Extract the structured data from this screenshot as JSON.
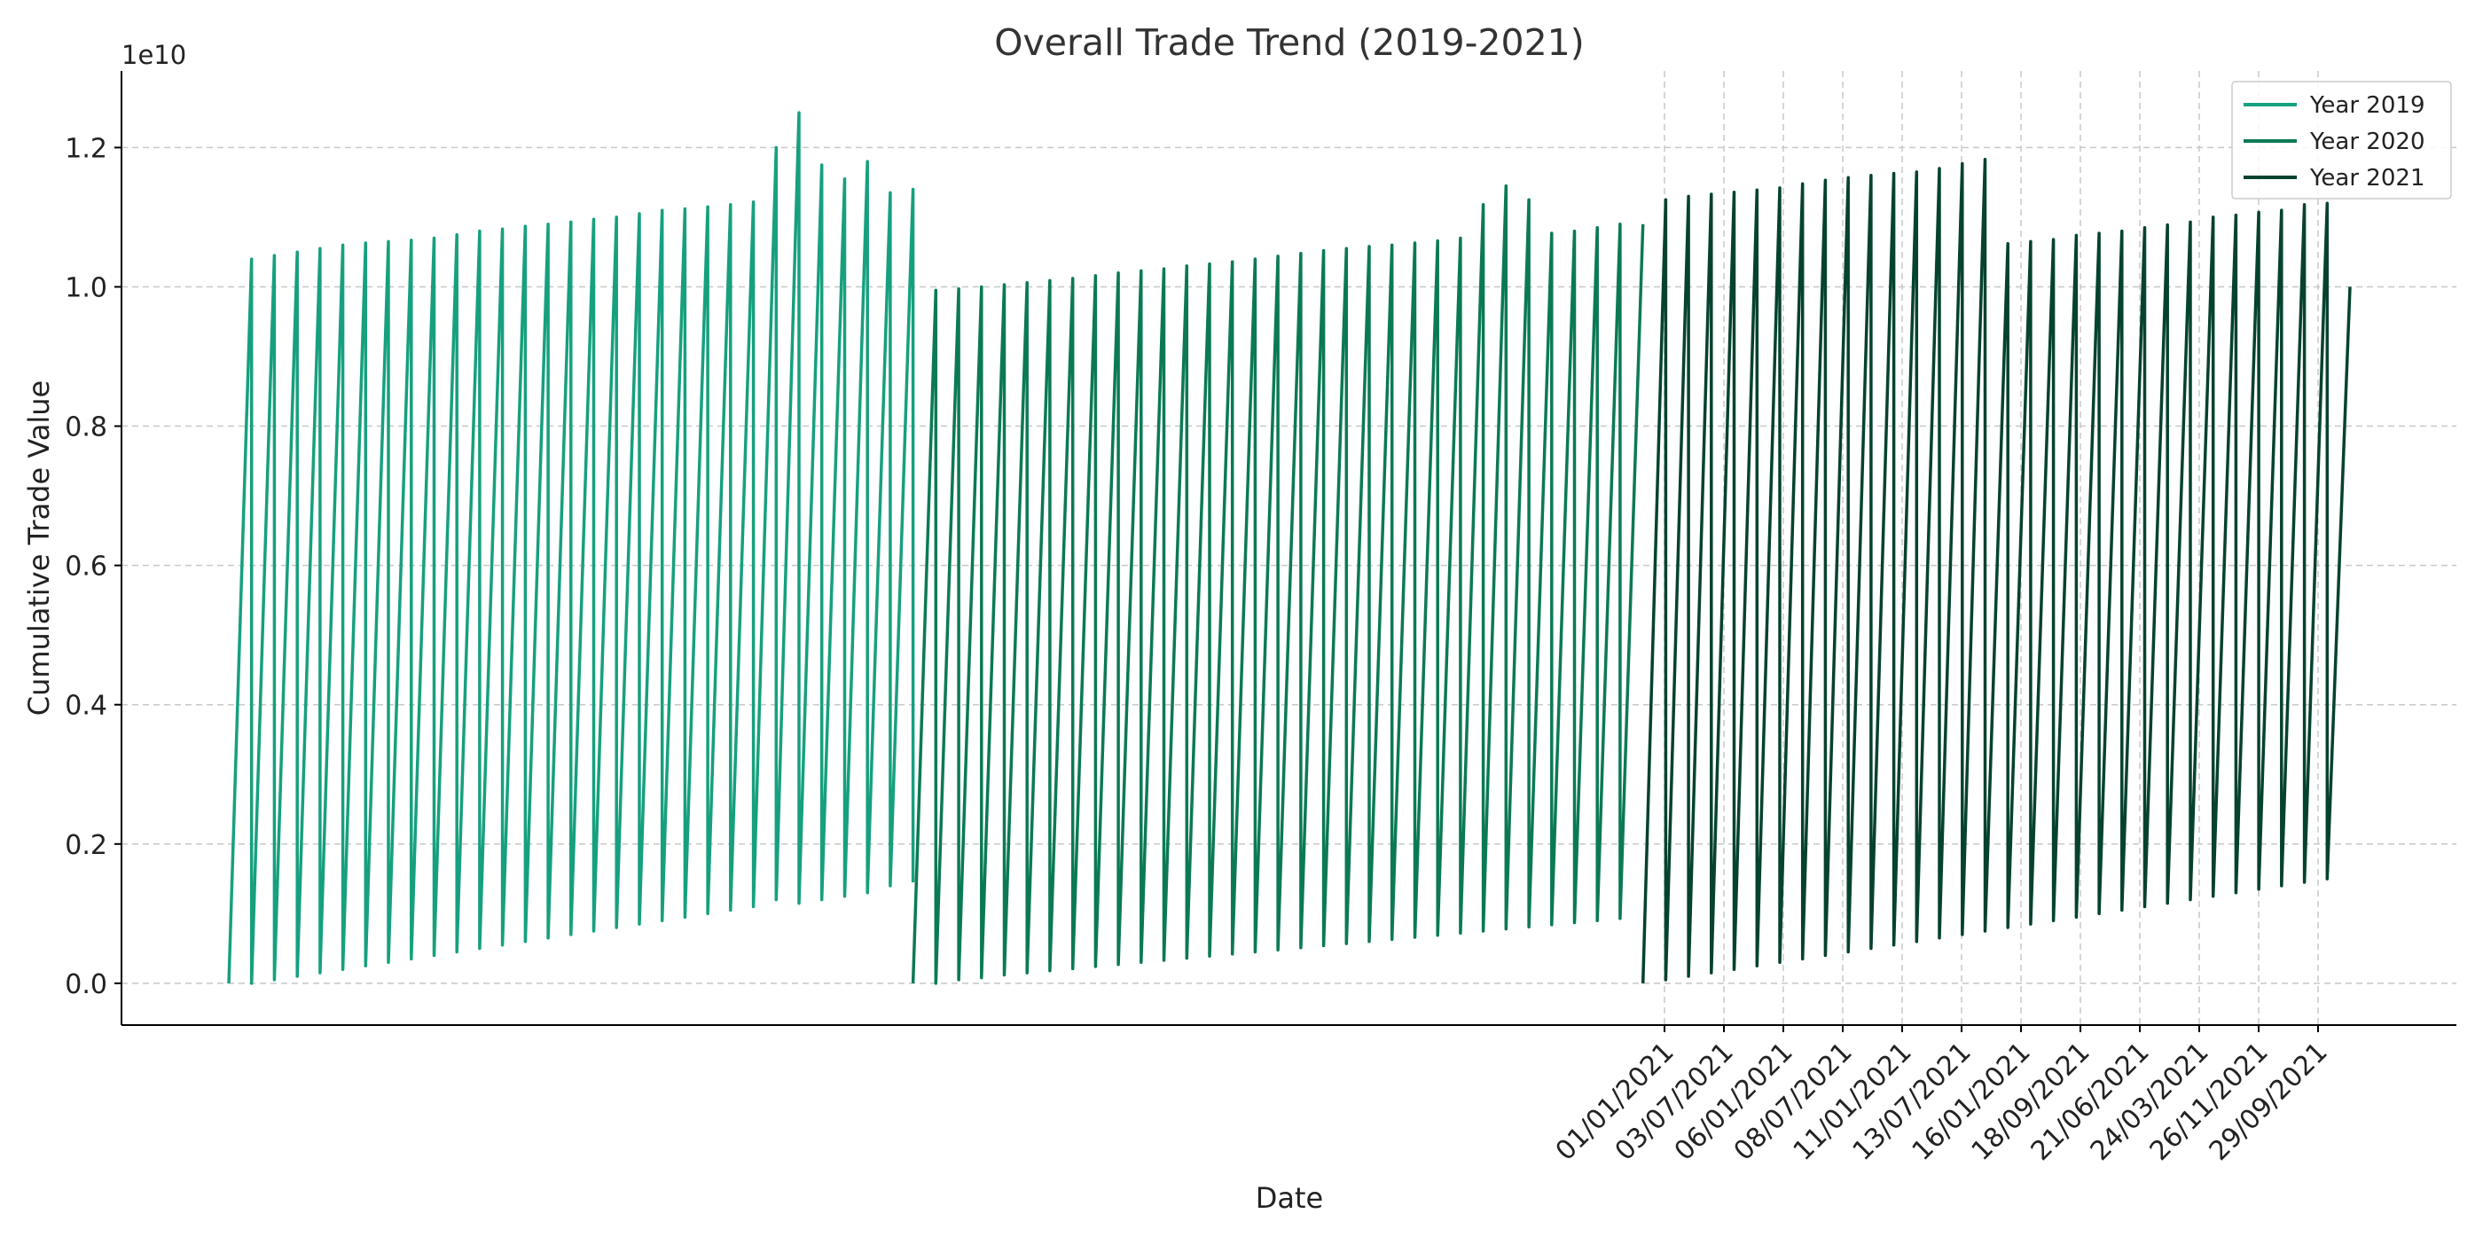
{
  "chart_data": {
    "type": "line",
    "title": "Overall Trade Trend (2019-2021)",
    "xlabel": "Date",
    "ylabel": "Cumulative Trade Value",
    "y_multiplier_label": "1e10",
    "ylim": [
      -0.06,
      1.31
    ],
    "yticks": [
      "0.0",
      "0.2",
      "0.4",
      "0.6",
      "0.8",
      "1.0",
      "1.2"
    ],
    "xticks": [
      "01/01/2021",
      "03/07/2021",
      "06/01/2021",
      "08/07/2021",
      "11/01/2021",
      "13/07/2021",
      "16/01/2021",
      "18/09/2021",
      "21/06/2021",
      "24/03/2021",
      "26/11/2021",
      "29/09/2021"
    ],
    "grid": true,
    "legend_position": "top-right",
    "series": [
      {
        "name": "Year 2019",
        "color": "#16a07e",
        "points": [
          [
            0,
            0.0
          ],
          [
            1,
            1.04
          ],
          [
            1,
            0.0
          ],
          [
            2,
            1.045
          ],
          [
            2,
            0.005
          ],
          [
            3,
            1.05
          ],
          [
            3,
            0.01
          ],
          [
            4,
            1.055
          ],
          [
            4,
            0.015
          ],
          [
            5,
            1.06
          ],
          [
            5,
            0.02
          ],
          [
            6,
            1.063
          ],
          [
            6,
            0.025
          ],
          [
            7,
            1.065
          ],
          [
            7,
            0.03
          ],
          [
            8,
            1.067
          ],
          [
            8,
            0.035
          ],
          [
            9,
            1.07
          ],
          [
            9,
            0.04
          ],
          [
            10,
            1.075
          ],
          [
            10,
            0.045
          ],
          [
            11,
            1.08
          ],
          [
            11,
            0.05
          ],
          [
            12,
            1.083
          ],
          [
            12,
            0.055
          ],
          [
            13,
            1.087
          ],
          [
            13,
            0.06
          ],
          [
            14,
            1.09
          ],
          [
            14,
            0.065
          ],
          [
            15,
            1.093
          ],
          [
            15,
            0.07
          ],
          [
            16,
            1.097
          ],
          [
            16,
            0.075
          ],
          [
            17,
            1.1
          ],
          [
            17,
            0.08
          ],
          [
            18,
            1.105
          ],
          [
            18,
            0.085
          ],
          [
            19,
            1.11
          ],
          [
            19,
            0.09
          ],
          [
            20,
            1.112
          ],
          [
            20,
            0.095
          ],
          [
            21,
            1.115
          ],
          [
            21,
            0.1
          ],
          [
            22,
            1.118
          ],
          [
            22,
            0.105
          ],
          [
            23,
            1.122
          ],
          [
            23,
            0.11
          ],
          [
            24,
            1.2
          ],
          [
            24,
            0.12
          ],
          [
            25,
            1.25
          ],
          [
            25,
            0.115
          ],
          [
            26,
            1.175
          ],
          [
            26,
            0.12
          ],
          [
            27,
            1.155
          ],
          [
            27,
            0.125
          ],
          [
            28,
            1.18
          ],
          [
            28,
            0.13
          ],
          [
            29,
            1.135
          ],
          [
            29,
            0.14
          ],
          [
            30,
            1.14
          ],
          [
            30,
            0.145
          ]
        ]
      },
      {
        "name": "Year 2020",
        "color": "#0b7a53",
        "points": [
          [
            30,
            0.0
          ],
          [
            31,
            0.995
          ],
          [
            31,
            0.0
          ],
          [
            32,
            0.997
          ],
          [
            32,
            0.005
          ],
          [
            33,
            1.0
          ],
          [
            33,
            0.008
          ],
          [
            34,
            1.003
          ],
          [
            34,
            0.012
          ],
          [
            35,
            1.006
          ],
          [
            35,
            0.015
          ],
          [
            36,
            1.009
          ],
          [
            36,
            0.018
          ],
          [
            37,
            1.012
          ],
          [
            37,
            0.021
          ],
          [
            38,
            1.016
          ],
          [
            38,
            0.024
          ],
          [
            39,
            1.02
          ],
          [
            39,
            0.027
          ],
          [
            40,
            1.023
          ],
          [
            40,
            0.03
          ],
          [
            41,
            1.026
          ],
          [
            41,
            0.033
          ],
          [
            42,
            1.03
          ],
          [
            42,
            0.036
          ],
          [
            43,
            1.033
          ],
          [
            43,
            0.039
          ],
          [
            44,
            1.036
          ],
          [
            44,
            0.042
          ],
          [
            45,
            1.04
          ],
          [
            45,
            0.045
          ],
          [
            46,
            1.044
          ],
          [
            46,
            0.048
          ],
          [
            47,
            1.048
          ],
          [
            47,
            0.051
          ],
          [
            48,
            1.052
          ],
          [
            48,
            0.054
          ],
          [
            49,
            1.055
          ],
          [
            49,
            0.057
          ],
          [
            50,
            1.058
          ],
          [
            50,
            0.06
          ],
          [
            51,
            1.06
          ],
          [
            51,
            0.063
          ],
          [
            52,
            1.063
          ],
          [
            52,
            0.066
          ],
          [
            53,
            1.066
          ],
          [
            53,
            0.069
          ],
          [
            54,
            1.07
          ],
          [
            54,
            0.072
          ],
          [
            55,
            1.118
          ],
          [
            55,
            0.075
          ],
          [
            56,
            1.145
          ],
          [
            56,
            0.078
          ],
          [
            57,
            1.125
          ],
          [
            57,
            0.081
          ],
          [
            58,
            1.077
          ],
          [
            58,
            0.084
          ],
          [
            59,
            1.08
          ],
          [
            59,
            0.087
          ],
          [
            60,
            1.085
          ],
          [
            60,
            0.09
          ],
          [
            61,
            1.09
          ],
          [
            61,
            0.093
          ],
          [
            62,
            1.09
          ]
        ]
      },
      {
        "name": "Year 2021",
        "color": "#054230",
        "points": [
          [
            62,
            0.0
          ],
          [
            63,
            1.125
          ],
          [
            63,
            0.005
          ],
          [
            64,
            1.13
          ],
          [
            64,
            0.01
          ],
          [
            65,
            1.133
          ],
          [
            65,
            0.015
          ],
          [
            66,
            1.136
          ],
          [
            66,
            0.02
          ],
          [
            67,
            1.139
          ],
          [
            67,
            0.025
          ],
          [
            68,
            1.142
          ],
          [
            68,
            0.03
          ],
          [
            69,
            1.148
          ],
          [
            69,
            0.035
          ],
          [
            70,
            1.153
          ],
          [
            70,
            0.04
          ],
          [
            71,
            1.157
          ],
          [
            71,
            0.045
          ],
          [
            72,
            1.16
          ],
          [
            72,
            0.05
          ],
          [
            73,
            1.163
          ],
          [
            73,
            0.055
          ],
          [
            74,
            1.165
          ],
          [
            74,
            0.06
          ],
          [
            75,
            1.17
          ],
          [
            75,
            0.065
          ],
          [
            76,
            1.177
          ],
          [
            76,
            0.07
          ],
          [
            77,
            1.183
          ],
          [
            77,
            0.075
          ],
          [
            78,
            1.062
          ],
          [
            78,
            0.08
          ],
          [
            79,
            1.065
          ],
          [
            79,
            0.085
          ],
          [
            80,
            1.068
          ],
          [
            80,
            0.09
          ],
          [
            81,
            1.074
          ],
          [
            81,
            0.095
          ],
          [
            82,
            1.077
          ],
          [
            82,
            0.1
          ],
          [
            83,
            1.08
          ],
          [
            83,
            0.105
          ],
          [
            84,
            1.085
          ],
          [
            84,
            0.11
          ],
          [
            85,
            1.089
          ],
          [
            85,
            0.115
          ],
          [
            86,
            1.093
          ],
          [
            86,
            0.12
          ],
          [
            87,
            1.1
          ],
          [
            87,
            0.125
          ],
          [
            88,
            1.103
          ],
          [
            88,
            0.13
          ],
          [
            89,
            1.107
          ],
          [
            89,
            0.135
          ],
          [
            90,
            1.11
          ],
          [
            90,
            0.14
          ],
          [
            91,
            1.118
          ],
          [
            91,
            0.145
          ],
          [
            92,
            1.12
          ],
          [
            92,
            0.15
          ],
          [
            93,
            1.0
          ]
        ]
      }
    ]
  }
}
